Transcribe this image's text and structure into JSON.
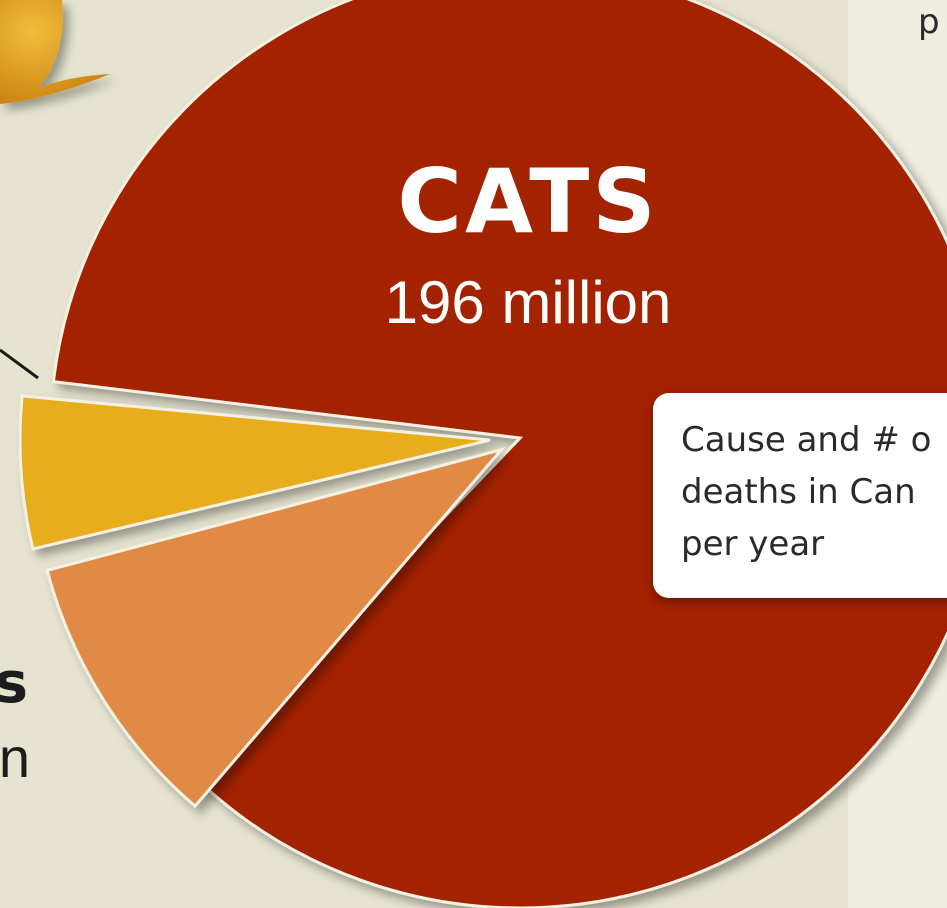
{
  "colors": {
    "background": "#e6e4d0",
    "panel": "#efeedf",
    "cats": "#a32403",
    "yellow_slice": "#e7ad1e",
    "orange_slice": "#e08a44",
    "logo": "#e8a019"
  },
  "panel_text": "p",
  "chart_data": {
    "type": "pie",
    "title": "",
    "slices": [
      {
        "label": "CATS",
        "value": 196,
        "value_text": "196 million",
        "color": "#a32403"
      },
      {
        "label": "",
        "value": 12,
        "value_text": "",
        "color": "#e7ad1e"
      },
      {
        "label": "s",
        "value": 22,
        "value_text": "n",
        "color": "#e08a44"
      }
    ],
    "callout": {
      "text": "Cause and # o\ndeaths in Can\nper year"
    }
  }
}
